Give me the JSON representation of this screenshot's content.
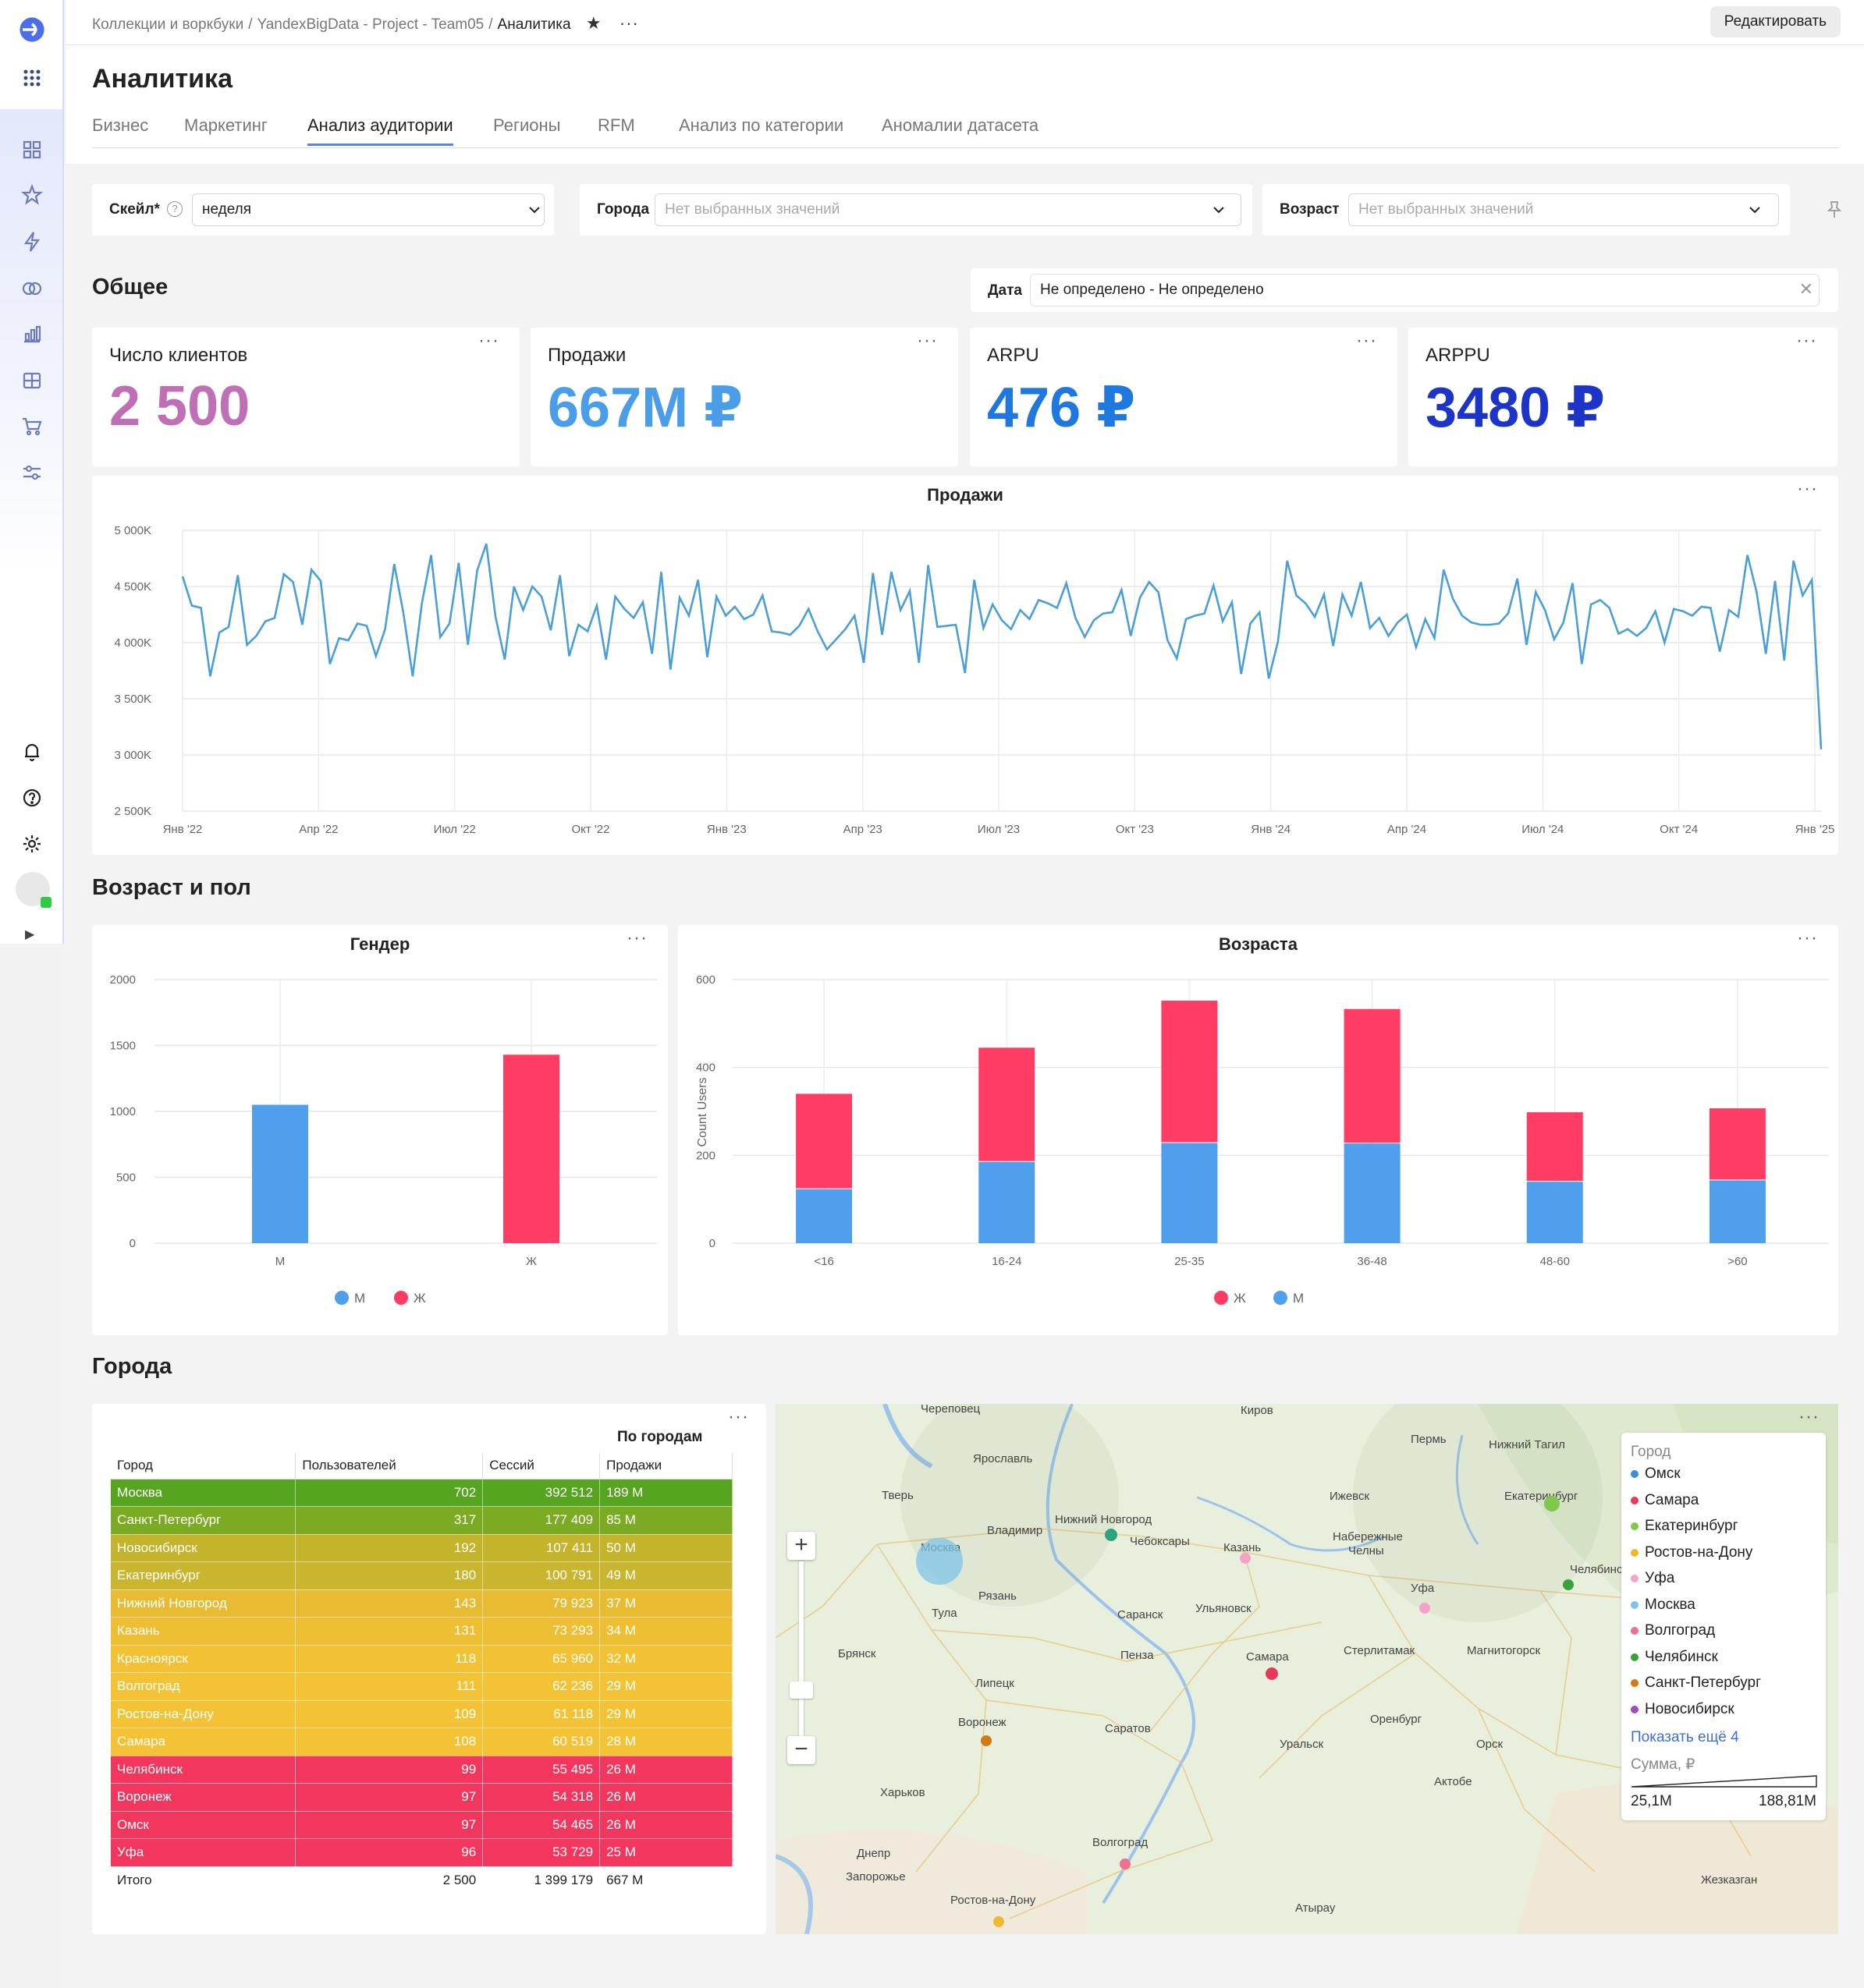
{
  "header": {
    "breadcrumb_1": "Коллекции и воркбуки",
    "breadcrumb_2": "YandexBigData - Project - Team05",
    "breadcrumb_3": "Аналитика",
    "sep": "/",
    "edit_label": "Редактировать"
  },
  "page": {
    "title": "Аналитика"
  },
  "tabs": [
    "Бизнес",
    "Маркетинг",
    "Анализ аудитории",
    "Регионы",
    "RFM",
    "Анализ по категории",
    "Аномалии датасета"
  ],
  "filters": {
    "scale_label": "Скейл*",
    "scale_value": "неделя",
    "cities_label": "Города",
    "cities_placeholder": "Нет выбранных значений",
    "age_label": "Возраст",
    "age_placeholder": "Нет выбранных значений",
    "date_label": "Дата",
    "date_value": "Не определено - Не определено"
  },
  "sections": {
    "general": "Общее",
    "age_gender": "Возраст и пол",
    "cities": "Города"
  },
  "kpis": [
    {
      "title": "Число клиентов",
      "value": "2 500",
      "color": "#c06fb7"
    },
    {
      "title": "Продажи",
      "value": "667M ₽",
      "color": "#4a9de8"
    },
    {
      "title": "ARPU",
      "value": "476 ₽",
      "color": "#1f78e0"
    },
    {
      "title": "ARPPU",
      "value": "3480 ₽",
      "color": "#1c35c8"
    }
  ],
  "colors": {
    "blue": "#4f9fec",
    "red": "#ff3d64",
    "line": "#4a9fd8"
  },
  "chart_data": [
    {
      "type": "line",
      "title": "Продажи",
      "x_ticks": [
        "Янв '22",
        "Апр '22",
        "Июл '22",
        "Окт '22",
        "Янв '23",
        "Апр '23",
        "Июл '23",
        "Окт '23",
        "Янв '24",
        "Апр '24",
        "Июл '24",
        "Окт '24",
        "Янв '25"
      ],
      "y_ticks": [
        "5 000K",
        "4 500K",
        "4 000K",
        "3 500K",
        "3 000K",
        "2 500K"
      ],
      "ylim": [
        2500,
        5000
      ],
      "values": [
        4590,
        4330,
        4310,
        3700,
        4090,
        4140,
        4600,
        3980,
        4060,
        4190,
        4220,
        4610,
        4540,
        4160,
        4650,
        4550,
        3810,
        4040,
        4020,
        4170,
        4150,
        3880,
        4120,
        4700,
        4260,
        3700,
        4350,
        4780,
        4050,
        4170,
        4710,
        3980,
        4640,
        4880,
        4230,
        3850,
        4500,
        4290,
        4500,
        4410,
        4110,
        4600,
        3880,
        4160,
        4100,
        4330,
        3850,
        4410,
        4300,
        4220,
        4360,
        3900,
        4630,
        3760,
        4400,
        4240,
        4560,
        3870,
        4410,
        4240,
        4320,
        4210,
        4250,
        4420,
        4100,
        4090,
        4070,
        4150,
        4300,
        4100,
        3940,
        4030,
        4120,
        4240,
        3820,
        4620,
        4070,
        4630,
        4290,
        4460,
        3820,
        4690,
        4140,
        4150,
        4160,
        3730,
        4560,
        4130,
        4340,
        4200,
        4120,
        4290,
        4210,
        4380,
        4350,
        4310,
        4530,
        4220,
        4050,
        4200,
        4260,
        4270,
        4470,
        4060,
        4400,
        4540,
        4450,
        4020,
        3860,
        4210,
        4240,
        4260,
        4510,
        4190,
        4360,
        3720,
        4170,
        4270,
        3680,
        4010,
        4730,
        4420,
        4350,
        4230,
        4430,
        3970,
        4430,
        4240,
        4540,
        4130,
        4220,
        4060,
        4180,
        4250,
        3960,
        4210,
        4040,
        4650,
        4390,
        4240,
        4180,
        4160,
        4160,
        4170,
        4260,
        4570,
        3980,
        4450,
        4290,
        4030,
        4180,
        4530,
        3810,
        4340,
        4380,
        4310,
        4080,
        4120,
        4060,
        4130,
        4280,
        4000,
        4300,
        4280,
        4240,
        4320,
        4310,
        3920,
        4290,
        4230,
        4780,
        4450,
        3900,
        4550,
        3840,
        4730,
        4420,
        4560,
        3050
      ]
    },
    {
      "type": "bar",
      "title": "Гендер",
      "categories": [
        "М",
        "Ж"
      ],
      "values": [
        1050,
        1430
      ],
      "colors": [
        "#4f9fec",
        "#ff3d64"
      ],
      "ylim": [
        0,
        2000
      ],
      "y_ticks": [
        "2000",
        "1500",
        "1000",
        "500",
        "0"
      ],
      "legend": [
        "М",
        "Ж"
      ]
    },
    {
      "type": "bar",
      "title": "Возраста",
      "ylabel": "Count Users",
      "categories": [
        "<16",
        "16-24",
        "25-35",
        "36-48",
        "48-60",
        ">60"
      ],
      "series": [
        {
          "name": "М",
          "values": [
            123,
            185,
            228,
            227,
            140,
            143
          ]
        },
        {
          "name": "Ж",
          "values": [
            217,
            260,
            324,
            306,
            158,
            164
          ]
        }
      ],
      "ylim": [
        0,
        600
      ],
      "y_ticks": [
        "600",
        "400",
        "200",
        "0"
      ],
      "legend": [
        "Ж",
        "М"
      ]
    }
  ],
  "table": {
    "title": "По городам",
    "headers": [
      "Город",
      "Пользователей",
      "Сессий",
      "Продажи"
    ],
    "rows": [
      {
        "city": "Москва",
        "users": "702",
        "sessions": "392 512",
        "sales": "189 M",
        "color": "#56a520"
      },
      {
        "city": "Санкт-Петербург",
        "users": "317",
        "sessions": "177 409",
        "sales": "85 M",
        "color": "#7bab22"
      },
      {
        "city": "Новосибирск",
        "users": "192",
        "sessions": "107 411",
        "sales": "50 M",
        "color": "#c3b42c"
      },
      {
        "city": "Екатеринбург",
        "users": "180",
        "sessions": "100 791",
        "sales": "49 M",
        "color": "#c9b52e"
      },
      {
        "city": "Нижний Новгород",
        "users": "143",
        "sessions": "79 923",
        "sales": "37 M",
        "color": "#e8bb32"
      },
      {
        "city": "Казань",
        "users": "131",
        "sessions": "73 293",
        "sales": "34 M",
        "color": "#efbf33"
      },
      {
        "city": "Красноярск",
        "users": "118",
        "sessions": "65 960",
        "sales": "32 M",
        "color": "#f2c234"
      },
      {
        "city": "Волгоград",
        "users": "111",
        "sessions": "62 236",
        "sales": "29 M",
        "color": "#f4c335"
      },
      {
        "city": "Ростов-на-Дону",
        "users": "109",
        "sessions": "61 118",
        "sales": "29 M",
        "color": "#f4c335"
      },
      {
        "city": "Самара",
        "users": "108",
        "sessions": "60 519",
        "sales": "28 M",
        "color": "#f4c335"
      },
      {
        "city": "Челябинск",
        "users": "99",
        "sessions": "55 495",
        "sales": "26 M",
        "color": "#f2365e"
      },
      {
        "city": "Воронеж",
        "users": "97",
        "sessions": "54 318",
        "sales": "26 M",
        "color": "#f2365e"
      },
      {
        "city": "Омск",
        "users": "97",
        "sessions": "54 465",
        "sales": "26 M",
        "color": "#f2365e"
      },
      {
        "city": "Уфа",
        "users": "96",
        "sessions": "53 729",
        "sales": "25 M",
        "color": "#f2365e"
      }
    ],
    "total": {
      "label": "Итого",
      "users": "2 500",
      "sessions": "1 399 179",
      "sales": "667 M"
    }
  },
  "map": {
    "legend_title": "Город",
    "legend_items": [
      {
        "name": "Омск",
        "color": "#3b8fd8"
      },
      {
        "name": "Самара",
        "color": "#e8385a"
      },
      {
        "name": "Екатеринбург",
        "color": "#7ec84a"
      },
      {
        "name": "Ростов-на-Дону",
        "color": "#f0b82e"
      },
      {
        "name": "Уфа",
        "color": "#f3a3c8"
      },
      {
        "name": "Москва",
        "color": "#7fc4e8"
      },
      {
        "name": "Волгоград",
        "color": "#f07090"
      },
      {
        "name": "Челябинск",
        "color": "#3aa03a"
      },
      {
        "name": "Санкт-Петербург",
        "color": "#d47a10"
      },
      {
        "name": "Новосибирск",
        "color": "#a44cc0"
      }
    ],
    "show_more": "Показать ещё 4",
    "sum_label": "Сумма, ₽",
    "sum_min": "25,1M",
    "sum_max": "188,81M",
    "labels": [
      {
        "t": "Череповец",
        "x": 1180,
        "y": 1806
      },
      {
        "t": "Киров",
        "x": 1590,
        "y": 1808
      },
      {
        "t": "Ярославль",
        "x": 1247,
        "y": 1870
      },
      {
        "t": "Пермь",
        "x": 1808,
        "y": 1845
      },
      {
        "t": "Нижний Тагил",
        "x": 1908,
        "y": 1852
      },
      {
        "t": "Тверь",
        "x": 1130,
        "y": 1917
      },
      {
        "t": "Ижевск",
        "x": 1704,
        "y": 1918
      },
      {
        "t": "Екатеринбург",
        "x": 1928,
        "y": 1918
      },
      {
        "t": "Владимир",
        "x": 1265,
        "y": 1962
      },
      {
        "t": "Нижний Новгород",
        "x": 1352,
        "y": 1948
      },
      {
        "t": "Москва",
        "x": 1180,
        "y": 1984
      },
      {
        "t": "Чебоксары",
        "x": 1448,
        "y": 1976
      },
      {
        "t": "Набережные",
        "x": 1708,
        "y": 1970
      },
      {
        "t": "Челны",
        "x": 1728,
        "y": 1988
      },
      {
        "t": "Казань",
        "x": 1568,
        "y": 1984
      },
      {
        "t": "Челябинск",
        "x": 2012,
        "y": 2012
      },
      {
        "t": "Рязань",
        "x": 1254,
        "y": 2046
      },
      {
        "t": "Уфа",
        "x": 1808,
        "y": 2036
      },
      {
        "t": "Тула",
        "x": 1194,
        "y": 2068
      },
      {
        "t": "Ульяновск",
        "x": 1532,
        "y": 2062
      },
      {
        "t": "Саранск",
        "x": 1432,
        "y": 2070
      },
      {
        "t": "Брянск",
        "x": 1074,
        "y": 2120
      },
      {
        "t": "Пенза",
        "x": 1436,
        "y": 2122
      },
      {
        "t": "Самара",
        "x": 1597,
        "y": 2124
      },
      {
        "t": "Стерлитамак",
        "x": 1722,
        "y": 2116
      },
      {
        "t": "Магнитогорск",
        "x": 1880,
        "y": 2116
      },
      {
        "t": "Липецк",
        "x": 1250,
        "y": 2158
      },
      {
        "t": "Воронеж",
        "x": 1228,
        "y": 2208
      },
      {
        "t": "Саратов",
        "x": 1416,
        "y": 2216
      },
      {
        "t": "Оренбург",
        "x": 1756,
        "y": 2204
      },
      {
        "t": "Уральск",
        "x": 1640,
        "y": 2236
      },
      {
        "t": "Орск",
        "x": 1892,
        "y": 2236
      },
      {
        "t": "Харьков",
        "x": 1128,
        "y": 2298
      },
      {
        "t": "Актобе",
        "x": 1838,
        "y": 2284
      },
      {
        "t": "Днепр",
        "x": 1098,
        "y": 2376
      },
      {
        "t": "Волгоград",
        "x": 1400,
        "y": 2362
      },
      {
        "t": "Запорожье",
        "x": 1084,
        "y": 2406
      },
      {
        "t": "Ростов-на-Дону",
        "x": 1218,
        "y": 2436
      },
      {
        "t": "Атырау",
        "x": 1660,
        "y": 2446
      },
      {
        "t": "Жезказган",
        "x": 2180,
        "y": 2410
      }
    ]
  }
}
